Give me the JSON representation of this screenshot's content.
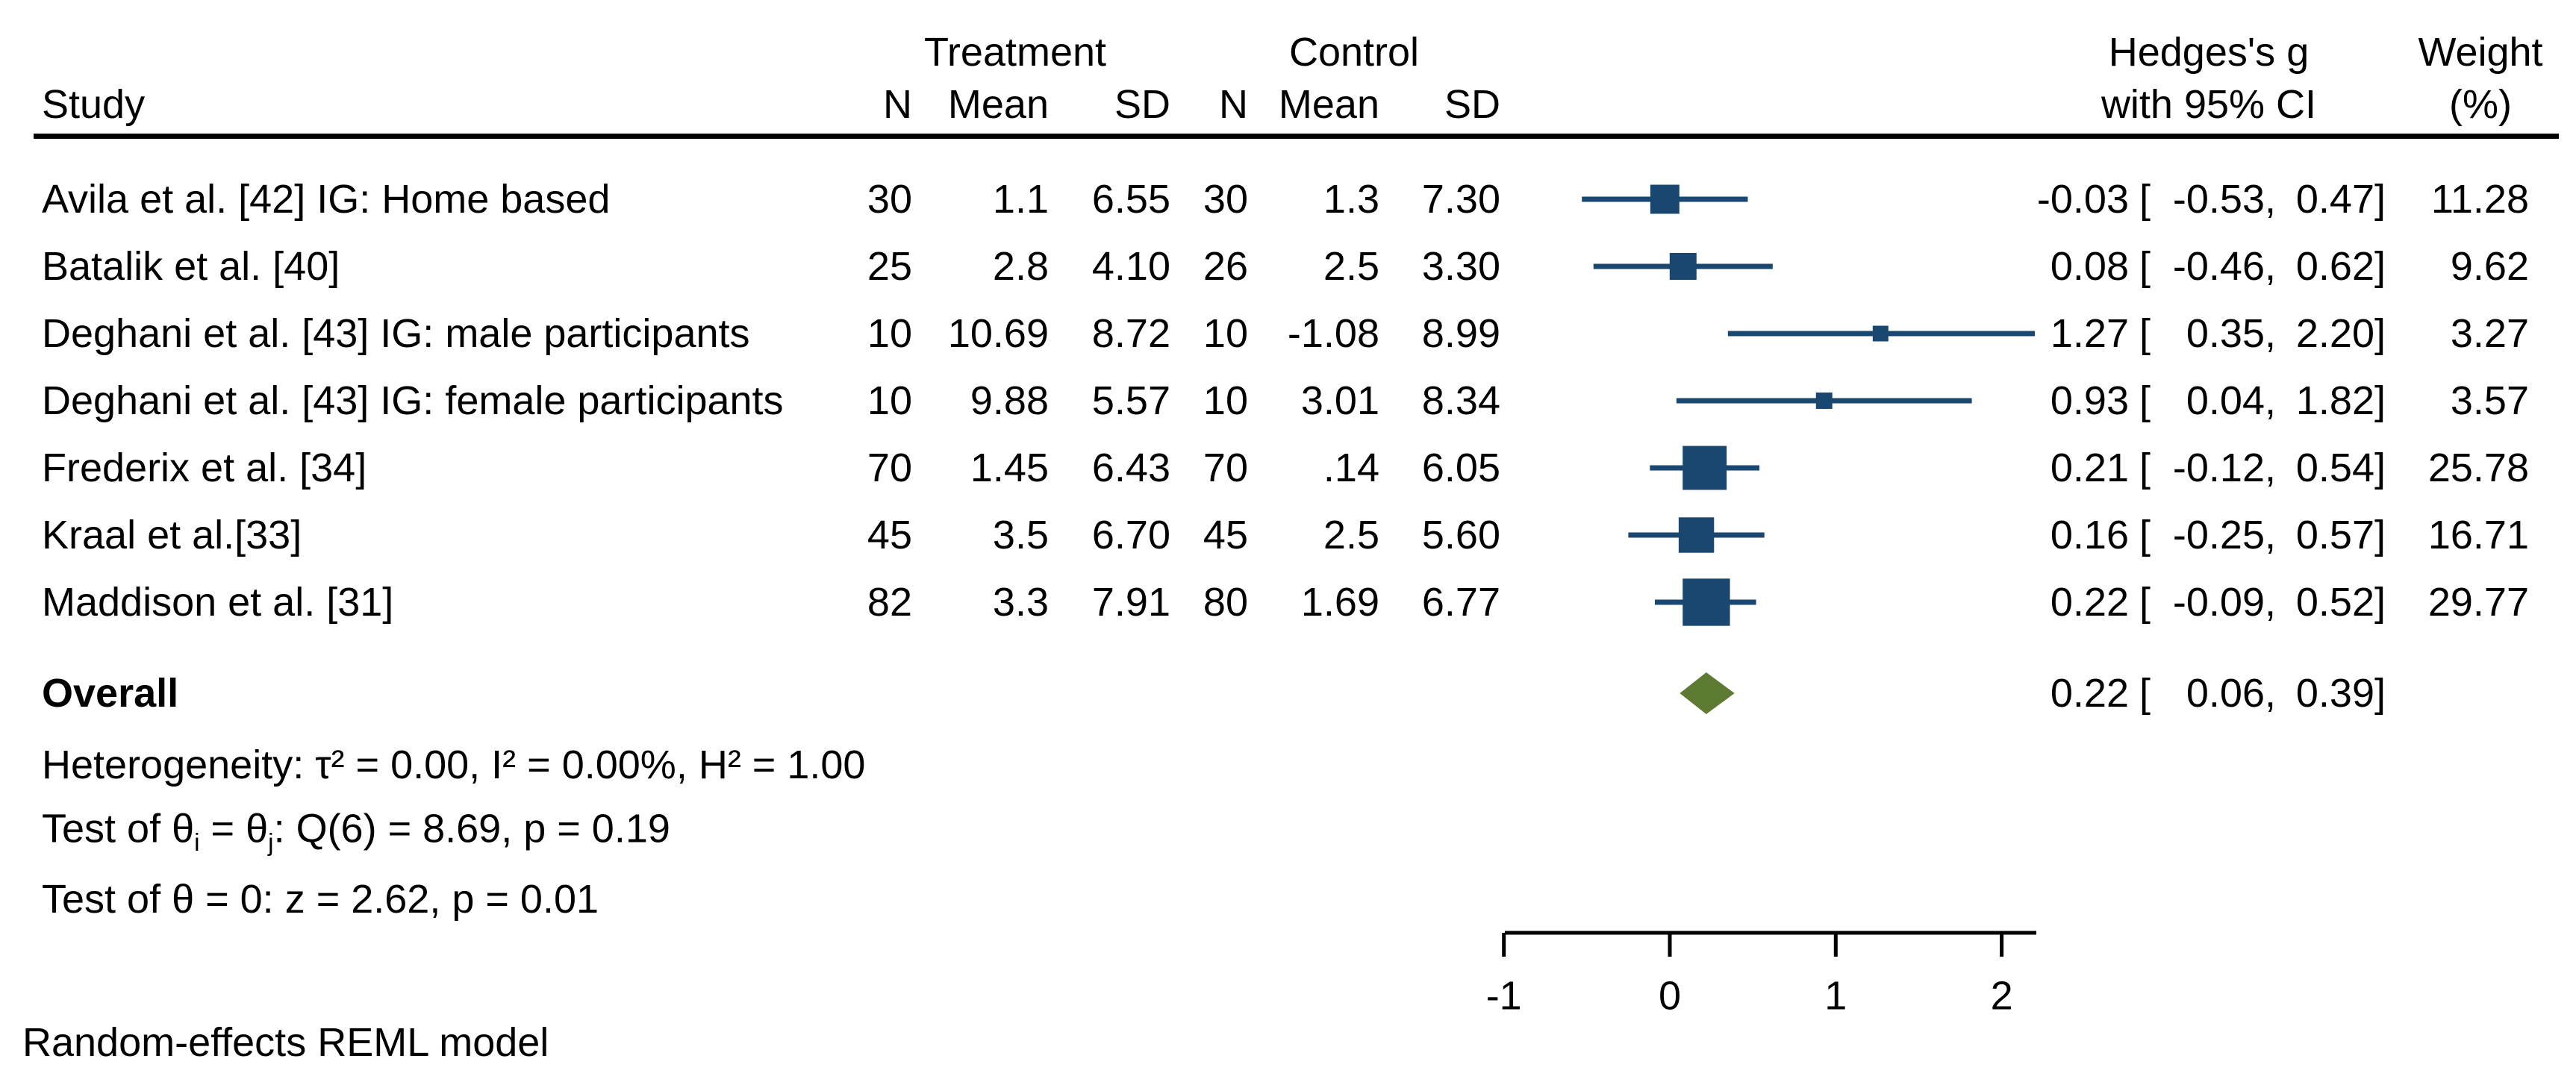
{
  "header": {
    "study": "Study",
    "treatment": "Treatment",
    "control": "Control",
    "col_n": "N",
    "col_mean": "Mean",
    "col_sd": "SD",
    "effect_line1": "Hedges's g",
    "effect_line2": "with 95% CI",
    "weight_line1": "Weight",
    "weight_line2": "(%)"
  },
  "symbols": {
    "open_bracket": "["
  },
  "chart_data": {
    "type": "forest",
    "effect_measure": "Hedges's g",
    "xlim": [
      -1,
      2.2
    ],
    "x_ticks": [
      "-1",
      "0",
      "1",
      "2"
    ],
    "x_tick_values": [
      -1,
      0,
      1,
      2
    ],
    "studies": [
      {
        "label": "Avila et al. [42] IG: Home based",
        "t_n": "30",
        "t_mean": "1.1",
        "t_sd": "6.55",
        "c_n": "30",
        "c_mean": "1.3",
        "c_sd": "7.30",
        "g": -0.03,
        "ci_lo": -0.53,
        "ci_hi": 0.47,
        "weight": 11.28,
        "g_text": "-0.03",
        "lo_text": "-0.53,",
        "hi_text": "0.47]",
        "weight_text": "11.28"
      },
      {
        "label": "Batalik et al. [40]",
        "t_n": "25",
        "t_mean": "2.8",
        "t_sd": "4.10",
        "c_n": "26",
        "c_mean": "2.5",
        "c_sd": "3.30",
        "g": 0.08,
        "ci_lo": -0.46,
        "ci_hi": 0.62,
        "weight": 9.62,
        "g_text": "0.08",
        "lo_text": "-0.46,",
        "hi_text": "0.62]",
        "weight_text": "9.62"
      },
      {
        "label": "Deghani et al. [43] IG: male participants",
        "t_n": "10",
        "t_mean": "10.69",
        "t_sd": "8.72",
        "c_n": "10",
        "c_mean": "-1.08",
        "c_sd": "8.99",
        "g": 1.27,
        "ci_lo": 0.35,
        "ci_hi": 2.2,
        "weight": 3.27,
        "g_text": "1.27",
        "lo_text": "0.35,",
        "hi_text": "2.20]",
        "weight_text": "3.27"
      },
      {
        "label": "Deghani et al. [43] IG: female participants",
        "t_n": "10",
        "t_mean": "9.88",
        "t_sd": "5.57",
        "c_n": "10",
        "c_mean": "3.01",
        "c_sd": "8.34",
        "g": 0.93,
        "ci_lo": 0.04,
        "ci_hi": 1.82,
        "weight": 3.57,
        "g_text": "0.93",
        "lo_text": "0.04,",
        "hi_text": "1.82]",
        "weight_text": "3.57"
      },
      {
        "label": "Frederix et al. [34]",
        "t_n": "70",
        "t_mean": "1.45",
        "t_sd": "6.43",
        "c_n": "70",
        "c_mean": ".14",
        "c_sd": "6.05",
        "g": 0.21,
        "ci_lo": -0.12,
        "ci_hi": 0.54,
        "weight": 25.78,
        "g_text": "0.21",
        "lo_text": "-0.12,",
        "hi_text": "0.54]",
        "weight_text": "25.78"
      },
      {
        "label": "Kraal et al.[33]",
        "t_n": "45",
        "t_mean": "3.5",
        "t_sd": "6.70",
        "c_n": "45",
        "c_mean": "2.5",
        "c_sd": "5.60",
        "g": 0.16,
        "ci_lo": -0.25,
        "ci_hi": 0.57,
        "weight": 16.71,
        "g_text": "0.16",
        "lo_text": "-0.25,",
        "hi_text": "0.57]",
        "weight_text": "16.71"
      },
      {
        "label": "Maddison et al. [31]",
        "t_n": "82",
        "t_mean": "3.3",
        "t_sd": "7.91",
        "c_n": "80",
        "c_mean": "1.69",
        "c_sd": "6.77",
        "g": 0.22,
        "ci_lo": -0.09,
        "ci_hi": 0.52,
        "weight": 29.77,
        "g_text": "0.22",
        "lo_text": "-0.09,",
        "hi_text": "0.52]",
        "weight_text": "29.77"
      }
    ],
    "overall": {
      "label": "Overall",
      "g": 0.22,
      "ci_lo": 0.06,
      "ci_hi": 0.39,
      "g_text": "0.22",
      "lo_text": "0.06,",
      "hi_text": "0.39]"
    }
  },
  "stats": {
    "heterogeneity": "Heterogeneity: τ² = 0.00, I² = 0.00%, H² = 1.00",
    "test_thetas": {
      "pre": "Test of θ",
      "sub_i": "i",
      "eq": " = θ",
      "sub_j": "j",
      "rest": ": Q(6) = 8.69, p = 0.19"
    },
    "test_zero": "Test of θ = 0: z = 2.62, p = 0.01"
  },
  "footer": {
    "model": "Random-effects REML model"
  },
  "colors": {
    "marker": "#1a476f",
    "diamond": "#5d7a33",
    "axis": "#000000"
  }
}
